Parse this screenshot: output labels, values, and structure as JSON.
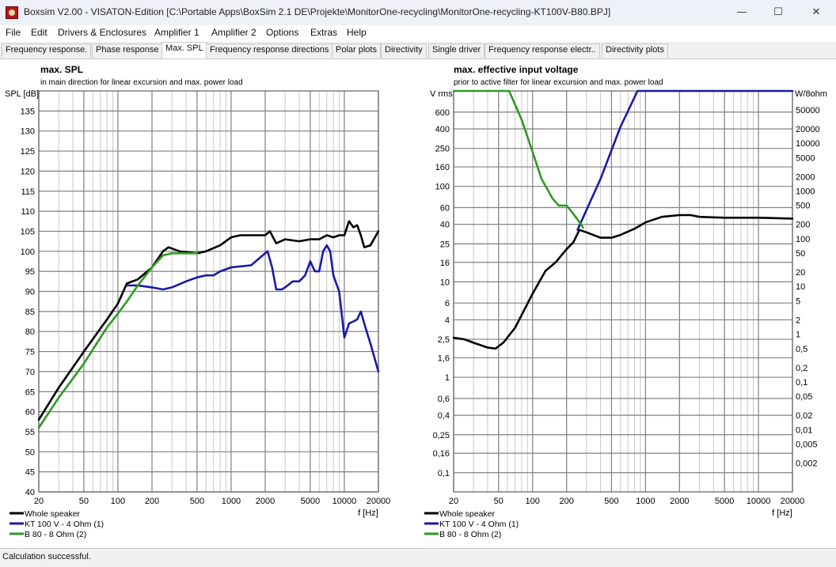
{
  "window": {
    "title": "Boxsim V2.00 - VISATON-Edition [C:\\Portable Apps\\BoxSim 2.1 DE\\Projekte\\MonitorOne-recycling\\MonitorOne-recycling-KT100V-B80.BPJ]",
    "minimize": "—",
    "maximize": "☐",
    "close": "✕"
  },
  "menu": [
    "File",
    "Edit",
    "Drivers & Enclosures",
    "Amplifier 1",
    "Amplifier 2",
    "Options",
    "Extras",
    "Help"
  ],
  "tabs": [
    "Frequency response.",
    "Phase response",
    "Max. SPL",
    "Frequency response directions",
    "Polar plots",
    "Directivity",
    "Single driver",
    "Frequency response electr..",
    "Directivity plots"
  ],
  "active_tab": "Max. SPL",
  "status_text": "Calculation successful.",
  "colors": {
    "whole": "#000000",
    "kt100": "#1a1aa8",
    "b80": "#2e9a22",
    "grid_major": "#808080",
    "grid_minor": "#c8c8c8"
  },
  "chart_data": [
    {
      "type": "line",
      "title": "max. SPL",
      "subtitle": "in main direction for linear excursion and max. power load",
      "ylabel": "SPL [dB]",
      "xlabel": "f [Hz]",
      "xscale": "log",
      "xlim": [
        20,
        20000
      ],
      "ylim": [
        40,
        140
      ],
      "xticks": [
        20,
        50,
        100,
        200,
        500,
        1000,
        2000,
        5000,
        10000,
        20000
      ],
      "xtick_labels": [
        "20",
        "50",
        "100",
        "200",
        "500",
        "1000",
        "2000",
        "5000",
        "10000",
        "20000"
      ],
      "yticks": [
        40,
        45,
        50,
        55,
        60,
        65,
        70,
        75,
        80,
        85,
        90,
        95,
        100,
        105,
        110,
        115,
        120,
        125,
        130,
        135
      ],
      "ytick_labels": [
        "40",
        "45",
        "50",
        "55",
        "60",
        "65",
        "70",
        "75",
        "80",
        "85",
        "90",
        "95",
        "100",
        "105",
        "110",
        "115",
        "120",
        "125",
        "130",
        "135"
      ],
      "legend": [
        "Whole speaker",
        "KT 100 V - 4 Ohm (1)",
        "B 80 - 8 Ohm (2)"
      ],
      "series": [
        {
          "name": "Whole speaker",
          "color": "#000000",
          "x": [
            20,
            30,
            50,
            80,
            100,
            120,
            150,
            200,
            250,
            280,
            350,
            500,
            600,
            800,
            1000,
            1200,
            1500,
            2000,
            2200,
            2500,
            3000,
            4000,
            5000,
            6000,
            7000,
            8000,
            9000,
            10000,
            11000,
            12000,
            13000,
            14000,
            15000,
            17000,
            20000
          ],
          "y": [
            58,
            66,
            75,
            83,
            87,
            92,
            93,
            96,
            100,
            101,
            100,
            99.5,
            100,
            101.5,
            103.5,
            104,
            104,
            104,
            105,
            102,
            103,
            102.5,
            103,
            103,
            104,
            103.5,
            104,
            104,
            107.5,
            106,
            106.5,
            104,
            101,
            101.5,
            105
          ]
        },
        {
          "name": "KT 100 V - 4 Ohm (1)",
          "color": "#1a1aa8",
          "x": [
            120,
            150,
            200,
            250,
            300,
            400,
            500,
            600,
            700,
            800,
            1000,
            1500,
            2000,
            2100,
            2300,
            2500,
            2800,
            3000,
            3500,
            4000,
            4500,
            5000,
            5500,
            6000,
            6500,
            7000,
            7500,
            8000,
            9000,
            10000,
            11000,
            12000,
            13000,
            14000,
            15000,
            17000,
            20000
          ],
          "y": [
            91.5,
            91.5,
            91,
            90.5,
            91,
            92.5,
            93.5,
            94,
            94,
            95,
            96,
            96.5,
            99.5,
            100,
            96,
            90.5,
            90.5,
            91,
            92.5,
            92.5,
            94,
            97.5,
            95,
            95,
            100,
            101.5,
            100,
            94,
            90,
            78.5,
            82,
            82.5,
            83,
            85,
            82,
            77,
            70
          ]
        },
        {
          "name": "B 80 - 8 Ohm (2)",
          "color": "#2e9a22",
          "x": [
            20,
            30,
            50,
            80,
            100,
            120,
            150,
            200,
            250,
            300,
            400,
            500
          ],
          "y": [
            56,
            63.5,
            72,
            81,
            84.5,
            87.5,
            91.5,
            96,
            99,
            99.5,
            99.5,
            99.5
          ]
        }
      ]
    },
    {
      "type": "line",
      "title": "max. effective input voltage",
      "subtitle": "prior to active filter for linear excursion and max. power load",
      "ylabel": "V rms",
      "y2label": "W/8ohm",
      "xlabel": "f [Hz]",
      "xscale": "log",
      "yscale": "log",
      "xlim": [
        20,
        20000
      ],
      "ylim": [
        0.063,
        1000
      ],
      "xticks": [
        20,
        50,
        100,
        200,
        500,
        1000,
        2000,
        5000,
        10000,
        20000
      ],
      "xtick_labels": [
        "20",
        "50",
        "100",
        "200",
        "500",
        "1000",
        "2000",
        "5000",
        "10000",
        "20000"
      ],
      "yticks": [
        0.1,
        0.16,
        0.25,
        0.4,
        0.6,
        1,
        1.6,
        2.5,
        4,
        6,
        10,
        16,
        25,
        40,
        60,
        100,
        160,
        250,
        400,
        600
      ],
      "ytick_labels": [
        "0,1",
        "0,16",
        "0,25",
        "0,4",
        "0,6",
        "1",
        "1,6",
        "2,5",
        "4",
        "6",
        "10",
        "16",
        "25",
        "40",
        "60",
        "100",
        "160",
        "250",
        "400",
        "600"
      ],
      "y2ticks": [
        0.002,
        0.005,
        0.01,
        0.02,
        0.05,
        0.1,
        0.2,
        0.5,
        1,
        2,
        5,
        10,
        20,
        50,
        100,
        200,
        500,
        1000,
        2000,
        5000,
        10000,
        20000,
        50000
      ],
      "y2tick_labels": [
        "0,002",
        "0,005",
        "0,01",
        "0,02",
        "0,05",
        "0,1",
        "0,2",
        "0,5",
        "1",
        "2",
        "5",
        "10",
        "20",
        "50",
        "100",
        "200",
        "500",
        "1000",
        "2000",
        "5000",
        "10000",
        "20000",
        "50000"
      ],
      "legend": [
        "Whole speaker",
        "KT 100 V - 4 Ohm (1)",
        "B 80 - 8 Ohm (2)"
      ],
      "series": [
        {
          "name": "Whole speaker",
          "color": "#000000",
          "x": [
            20,
            25,
            30,
            40,
            47,
            55,
            70,
            100,
            130,
            160,
            200,
            230,
            260,
            300,
            400,
            500,
            600,
            800,
            1000,
            1400,
            2000,
            2500,
            3000,
            5000,
            10000,
            20000
          ],
          "y": [
            2.6,
            2.5,
            2.3,
            2.05,
            2.0,
            2.3,
            3.3,
            7.5,
            13,
            16,
            22,
            26,
            35,
            33,
            29,
            29,
            31,
            36,
            42,
            48,
            50,
            50,
            48,
            47,
            47,
            46
          ]
        },
        {
          "name": "KT 100 V - 4 Ohm (1)",
          "color": "#1a1aa8",
          "x": [
            250,
            400,
            600,
            850,
            1000,
            2000,
            5000,
            10000,
            20000
          ],
          "y": [
            35,
            120,
            420,
            1000,
            1000,
            1000,
            1000,
            1000,
            1000
          ]
        },
        {
          "name": "B 80 - 8 Ohm (2)",
          "color": "#2e9a22",
          "x": [
            20,
            40,
            62,
            80,
            100,
            120,
            150,
            170,
            200,
            220,
            250,
            280
          ],
          "y": [
            1000,
            1000,
            1000,
            500,
            230,
            120,
            75,
            63,
            63,
            55,
            45,
            37
          ]
        }
      ]
    }
  ]
}
